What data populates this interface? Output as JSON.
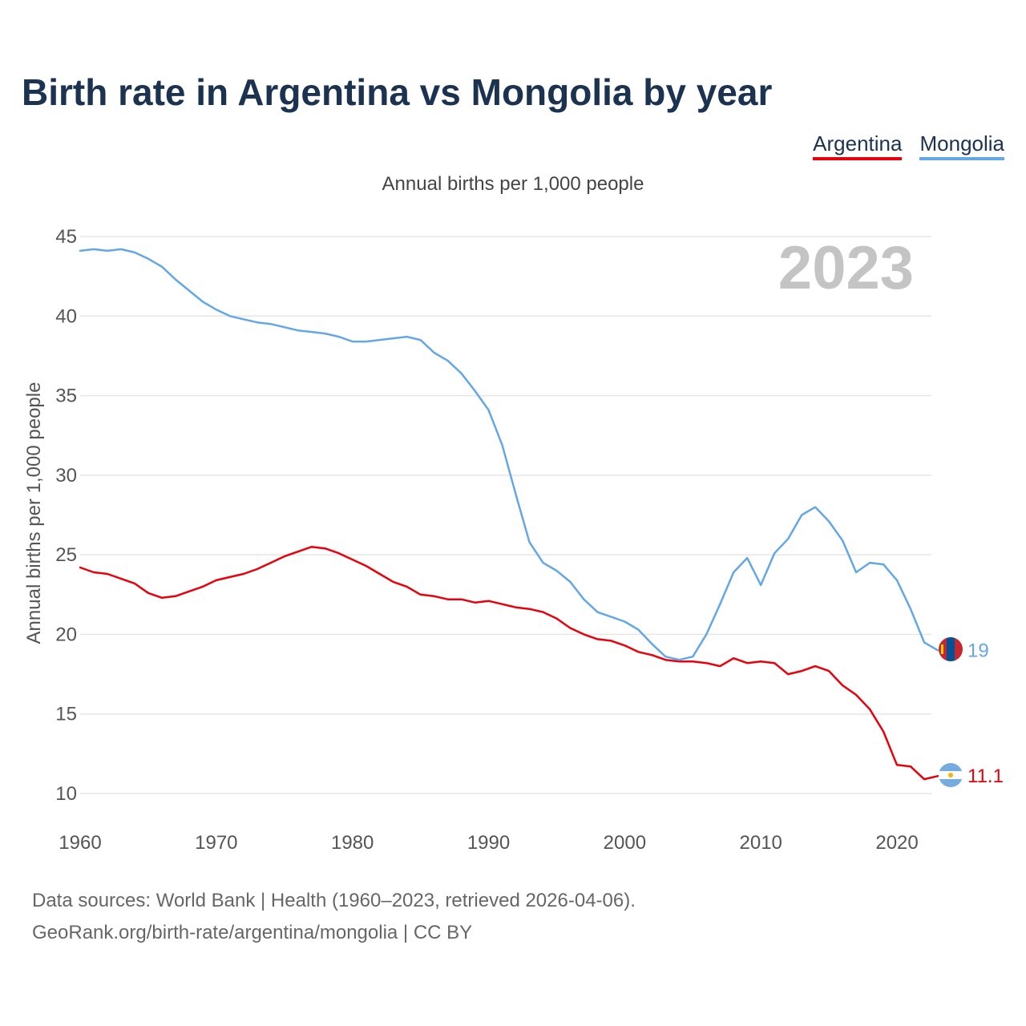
{
  "title": "Birth rate in Argentina vs Mongolia by year",
  "legend": {
    "argentina": "Argentina",
    "mongolia": "Mongolia"
  },
  "footer": {
    "line1": "Data sources: World Bank | Health (1960–2023, retrieved 2026-04-06).",
    "line2": "GeoRank.org/birth-rate/argentina/mongolia | CC BY"
  },
  "chart_data": {
    "type": "line",
    "title": "Annual births per 1,000 people",
    "ylabel": "Annual births per 1,000 people",
    "xlabel": "",
    "year_label": "2023",
    "xlim": [
      1960,
      2023
    ],
    "ylim": [
      10,
      45
    ],
    "x_ticks": [
      1960,
      1970,
      1980,
      1990,
      2000,
      2010,
      2020
    ],
    "y_ticks": [
      10,
      15,
      20,
      25,
      30,
      35,
      40,
      45
    ],
    "grid": true,
    "legend_position": "top-right",
    "x": [
      1960,
      1961,
      1962,
      1963,
      1964,
      1965,
      1966,
      1967,
      1968,
      1969,
      1970,
      1971,
      1972,
      1973,
      1974,
      1975,
      1976,
      1977,
      1978,
      1979,
      1980,
      1981,
      1982,
      1983,
      1984,
      1985,
      1986,
      1987,
      1988,
      1989,
      1990,
      1991,
      1992,
      1993,
      1994,
      1995,
      1996,
      1997,
      1998,
      1999,
      2000,
      2001,
      2002,
      2003,
      2004,
      2005,
      2006,
      2007,
      2008,
      2009,
      2010,
      2011,
      2012,
      2013,
      2014,
      2015,
      2016,
      2017,
      2018,
      2019,
      2020,
      2021,
      2022,
      2023
    ],
    "series": [
      {
        "name": "Argentina",
        "color": "#e8000b",
        "end_label": "11.1",
        "flag": "argentina",
        "values": [
          24.2,
          23.9,
          23.8,
          23.5,
          23.2,
          22.6,
          22.3,
          22.4,
          22.7,
          23.0,
          23.4,
          23.6,
          23.8,
          24.1,
          24.5,
          24.9,
          25.2,
          25.5,
          25.4,
          25.1,
          24.7,
          24.3,
          23.8,
          23.3,
          23.0,
          22.5,
          22.4,
          22.2,
          22.2,
          22.0,
          22.1,
          21.9,
          21.7,
          21.6,
          21.4,
          21.0,
          20.4,
          20.0,
          19.7,
          19.6,
          19.3,
          18.9,
          18.7,
          18.4,
          18.3,
          18.3,
          18.2,
          18.0,
          18.5,
          18.2,
          18.3,
          18.2,
          17.5,
          17.7,
          18.0,
          17.7,
          16.8,
          16.2,
          15.3,
          13.9,
          11.8,
          11.7,
          10.9,
          11.1
        ]
      },
      {
        "name": "Mongolia",
        "color": "#64a6e6",
        "end_label": "19",
        "flag": "mongolia",
        "values": [
          44.1,
          44.2,
          44.1,
          44.2,
          44.0,
          43.6,
          43.1,
          42.3,
          41.6,
          40.9,
          40.4,
          40.0,
          39.8,
          39.6,
          39.5,
          39.3,
          39.1,
          39.0,
          38.9,
          38.7,
          38.4,
          38.4,
          38.5,
          38.6,
          38.7,
          38.5,
          37.7,
          37.2,
          36.4,
          35.3,
          34.1,
          31.9,
          28.8,
          25.8,
          24.5,
          24.0,
          23.3,
          22.2,
          21.4,
          21.1,
          20.8,
          20.3,
          19.4,
          18.6,
          18.4,
          18.6,
          20.0,
          21.9,
          23.9,
          24.8,
          23.1,
          25.1,
          26.0,
          27.5,
          28.0,
          27.1,
          25.9,
          23.9,
          24.5,
          24.4,
          23.4,
          21.6,
          19.5,
          19.0
        ]
      }
    ]
  }
}
